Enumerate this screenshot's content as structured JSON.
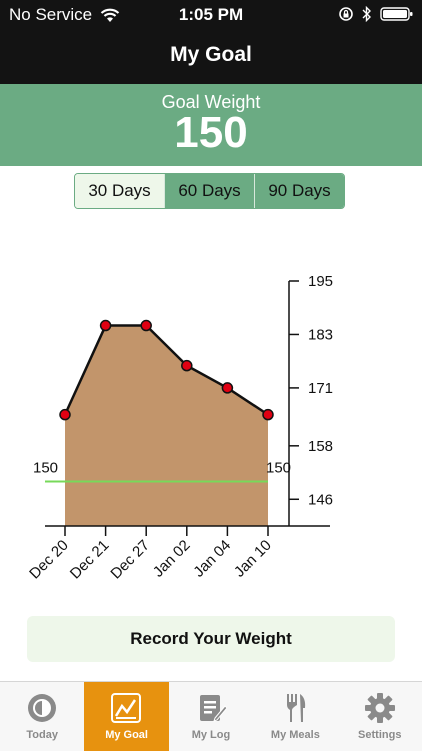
{
  "status": {
    "carrier": "No Service",
    "time": "1:05 PM"
  },
  "nav": {
    "title": "My Goal"
  },
  "goal": {
    "label": "Goal Weight",
    "value": "150"
  },
  "ranges": [
    {
      "label": "30 Days",
      "selected": true
    },
    {
      "label": "60 Days",
      "selected": false
    },
    {
      "label": "90 Days",
      "selected": false
    }
  ],
  "chart_data": {
    "type": "area",
    "x": [
      "Dec 20",
      "Dec 21",
      "Dec 27",
      "Jan 02",
      "Jan 04",
      "Jan 10"
    ],
    "values": [
      165,
      185,
      185,
      176,
      171,
      165
    ],
    "ylim": [
      140,
      195
    ],
    "yticks": [
      146,
      158,
      171,
      183,
      195
    ],
    "goal_line": 150,
    "goal_labels": [
      "150",
      "150"
    ],
    "colors": {
      "fill": "#c2956b",
      "marker": "#e00012",
      "goal": "#77d95a"
    }
  },
  "record_button": "Record Your Weight",
  "tabs": [
    {
      "label": "Today",
      "icon": "today-icon"
    },
    {
      "label": "My Goal",
      "icon": "goal-chart-icon"
    },
    {
      "label": "My Log",
      "icon": "log-icon"
    },
    {
      "label": "My Meals",
      "icon": "meals-icon"
    },
    {
      "label": "Settings",
      "icon": "gear-icon"
    }
  ]
}
